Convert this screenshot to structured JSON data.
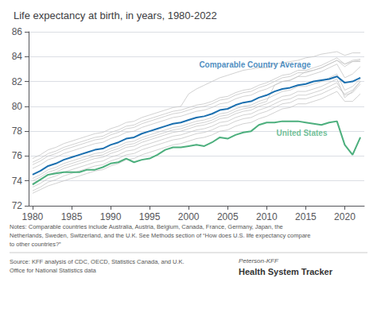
{
  "chart_data": {
    "type": "line",
    "title": "Life expectancy at birth, in years, 1980-2022",
    "x": [
      1980,
      1981,
      1982,
      1983,
      1984,
      1985,
      1986,
      1987,
      1988,
      1989,
      1990,
      1991,
      1992,
      1993,
      1994,
      1995,
      1996,
      1997,
      1998,
      1999,
      2000,
      2001,
      2002,
      2003,
      2004,
      2005,
      2006,
      2007,
      2008,
      2009,
      2010,
      2011,
      2012,
      2013,
      2014,
      2015,
      2016,
      2017,
      2018,
      2019,
      2020,
      2021,
      2022
    ],
    "series": [
      {
        "color": "#c5c5c5",
        "values": [
          74.0,
          74.3,
          74.7,
          74.9,
          75.2,
          75.4,
          75.6,
          75.8,
          76.0,
          76.1,
          76.4,
          76.6,
          76.9,
          77.0,
          77.3,
          77.5,
          77.7,
          77.9,
          78.1,
          78.2,
          78.4,
          78.6,
          78.7,
          78.9,
          79.2,
          79.3,
          79.6,
          79.8,
          79.9,
          80.2,
          80.4,
          81.7,
          82.0,
          82.1,
          82.4,
          82.8,
          82.9,
          83.1,
          83.4,
          83.7,
          83.2,
          83.6,
          83.7
        ]
      },
      {
        "color": "#c5c5c5",
        "values": [
          73.0,
          73.3,
          73.6,
          73.8,
          74.0,
          74.2,
          74.4,
          74.6,
          74.8,
          74.9,
          75.2,
          75.4,
          75.7,
          75.8,
          76.1,
          76.3,
          76.5,
          76.7,
          76.9,
          77.0,
          77.2,
          77.4,
          77.5,
          77.7,
          78.0,
          78.1,
          78.4,
          78.6,
          78.7,
          79.0,
          79.2,
          79.5,
          79.8,
          79.9,
          80.2,
          80.2,
          80.4,
          80.6,
          80.9,
          81.2,
          80.4,
          80.4,
          81.0
        ]
      },
      {
        "color": "#c5c5c5",
        "values": [
          75.5,
          75.8,
          76.2,
          76.4,
          76.7,
          76.9,
          77.1,
          77.3,
          77.5,
          77.6,
          77.9,
          78.1,
          78.4,
          78.5,
          78.8,
          79.0,
          79.2,
          79.4,
          79.6,
          79.7,
          79.9,
          80.1,
          80.2,
          80.4,
          80.7,
          80.8,
          81.1,
          81.3,
          81.4,
          81.7,
          81.9,
          82.2,
          82.5,
          82.6,
          82.9,
          82.9,
          83.1,
          83.3,
          83.6,
          83.9,
          83.4,
          83.7,
          83.8
        ]
      },
      {
        "color": "#c5c5c5",
        "values": [
          75.0,
          75.3,
          75.7,
          75.9,
          76.2,
          76.4,
          76.6,
          76.8,
          77.0,
          77.1,
          77.4,
          77.6,
          77.9,
          78.0,
          78.3,
          78.5,
          78.7,
          78.9,
          79.1,
          79.2,
          79.4,
          79.6,
          79.7,
          79.9,
          80.2,
          80.3,
          80.6,
          80.8,
          80.9,
          81.2,
          81.4,
          81.7,
          82.0,
          82.1,
          82.4,
          82.4,
          82.6,
          82.8,
          83.1,
          83.4,
          82.3,
          82.6,
          83.2
        ]
      },
      {
        "color": "#c5c5c5",
        "values": [
          73.8,
          74.1,
          74.5,
          74.7,
          75.0,
          75.2,
          75.4,
          75.6,
          75.8,
          75.9,
          76.2,
          76.4,
          76.7,
          76.8,
          77.1,
          77.3,
          77.5,
          77.7,
          77.9,
          78.0,
          78.2,
          78.4,
          78.5,
          78.7,
          79.0,
          79.1,
          79.4,
          79.6,
          79.7,
          80.0,
          80.2,
          80.5,
          80.8,
          80.9,
          81.2,
          81.2,
          81.4,
          81.6,
          81.9,
          82.2,
          80.7,
          81.2,
          82.0
        ]
      },
      {
        "color": "#c5c5c5",
        "values": [
          73.2,
          73.5,
          73.9,
          74.1,
          74.4,
          74.6,
          74.8,
          75.0,
          75.2,
          75.3,
          75.6,
          75.8,
          76.1,
          76.2,
          76.5,
          76.7,
          76.9,
          77.1,
          77.3,
          77.4,
          77.6,
          77.8,
          77.9,
          78.1,
          78.4,
          78.5,
          78.8,
          79.0,
          79.1,
          79.4,
          79.6,
          79.9,
          80.2,
          80.3,
          80.6,
          80.6,
          80.8,
          81.0,
          81.3,
          81.6,
          81.0,
          81.3,
          82.0
        ]
      },
      {
        "color": "#c5c5c5",
        "values": [
          75.8,
          76.1,
          76.5,
          76.7,
          77.0,
          77.2,
          77.4,
          77.6,
          77.8,
          77.9,
          78.2,
          78.4,
          78.7,
          78.8,
          79.1,
          79.3,
          79.5,
          79.7,
          79.9,
          80.0,
          81.0,
          81.4,
          81.7,
          82.0,
          82.3,
          82.5,
          82.7,
          82.9,
          83.0,
          83.1,
          83.1,
          83.4,
          83.5,
          83.6,
          83.7,
          83.9,
          84.0,
          84.2,
          84.3,
          84.4,
          84.1,
          84.3,
          84.3
        ]
      },
      {
        "color": "#c5c5c5",
        "values": [
          74.2,
          74.5,
          74.9,
          75.1,
          75.4,
          75.6,
          75.8,
          76.0,
          76.2,
          76.3,
          76.6,
          76.8,
          77.1,
          77.2,
          77.5,
          77.7,
          77.9,
          78.1,
          78.3,
          78.4,
          78.6,
          78.8,
          78.9,
          79.1,
          79.4,
          79.5,
          79.8,
          80.0,
          80.1,
          80.4,
          80.6,
          80.9,
          81.2,
          81.3,
          81.6,
          81.6,
          81.8,
          82.0,
          82.3,
          82.6,
          81.3,
          81.6,
          82.2
        ]
      },
      {
        "color": "#c5c5c5",
        "values": [
          75.3,
          75.6,
          76.0,
          76.2,
          76.5,
          76.7,
          76.9,
          77.1,
          77.3,
          77.4,
          77.7,
          77.9,
          78.2,
          78.3,
          78.6,
          78.8,
          79.0,
          79.2,
          79.4,
          79.5,
          79.7,
          79.9,
          80.0,
          80.2,
          80.5,
          80.6,
          80.9,
          81.1,
          81.2,
          81.5,
          81.7,
          82.0,
          82.3,
          82.4,
          82.7,
          82.7,
          82.9,
          83.1,
          83.4,
          83.7,
          83.4,
          83.6,
          83.6
        ]
      },
      {
        "color": "#c5c5c5",
        "values": [
          73.5,
          73.8,
          74.2,
          74.4,
          74.7,
          74.9,
          75.1,
          75.3,
          75.5,
          75.6,
          75.9,
          76.1,
          76.4,
          76.5,
          76.8,
          77.0,
          77.2,
          77.4,
          77.6,
          77.7,
          77.9,
          78.1,
          78.2,
          78.4,
          78.7,
          78.8,
          79.1,
          79.3,
          79.4,
          79.7,
          79.9,
          80.2,
          80.5,
          80.6,
          80.9,
          80.9,
          81.1,
          81.3,
          81.6,
          81.9,
          80.9,
          81.1,
          81.8
        ]
      },
      {
        "name": "Comparable Country Average",
        "color": "#1a6faf",
        "values": [
          74.5,
          74.8,
          75.2,
          75.4,
          75.7,
          75.9,
          76.1,
          76.3,
          76.5,
          76.6,
          76.9,
          77.1,
          77.4,
          77.5,
          77.8,
          78.0,
          78.2,
          78.4,
          78.6,
          78.7,
          78.9,
          79.1,
          79.2,
          79.4,
          79.7,
          79.8,
          80.1,
          80.3,
          80.4,
          80.7,
          80.9,
          81.2,
          81.4,
          81.5,
          81.7,
          81.8,
          82.0,
          82.1,
          82.2,
          82.4,
          81.9,
          82.0,
          82.3
        ]
      },
      {
        "name": "United States",
        "color": "#4caf7d",
        "values": [
          73.7,
          74.1,
          74.5,
          74.6,
          74.7,
          74.7,
          74.7,
          74.9,
          74.9,
          75.1,
          75.4,
          75.5,
          75.8,
          75.5,
          75.7,
          75.8,
          76.1,
          76.5,
          76.7,
          76.7,
          76.8,
          76.9,
          76.8,
          77.1,
          77.5,
          77.4,
          77.7,
          77.9,
          78.0,
          78.5,
          78.7,
          78.7,
          78.8,
          78.8,
          78.8,
          78.7,
          78.6,
          78.5,
          78.7,
          78.8,
          76.9,
          76.1,
          77.5
        ]
      }
    ],
    "annotations": [
      {
        "text": "Comparable Country Average",
        "x": 2008.5,
        "y": 83.0,
        "color": "#1a6faf"
      },
      {
        "text": "United States",
        "x": 2014.5,
        "y": 77.5,
        "color": "#4caf7d"
      }
    ],
    "xlim": [
      1979.5,
      2022.5
    ],
    "xticks": [
      1980,
      1985,
      1990,
      1995,
      2000,
      2005,
      2010,
      2015,
      2020
    ],
    "ylim": [
      72,
      86
    ],
    "yticks": [
      72,
      74,
      76,
      78,
      80,
      82,
      84,
      86
    ],
    "grid": true,
    "notes": "Notes: Comparable countries include Australia, Austria, Belgium, Canada, France, Germany, Japan, the\nNetherlands, Sweden, Switzerland, and the U.K. See Methods section of “How does U.S. life expectancy compare\nto other countries?”",
    "source": "Source: KFF analysis of CDC, OECD, Statistics Canada, and U.K.\nOffice for National Statistics data",
    "logo": [
      "Peterson-KFF",
      "Health System Tracker"
    ]
  }
}
